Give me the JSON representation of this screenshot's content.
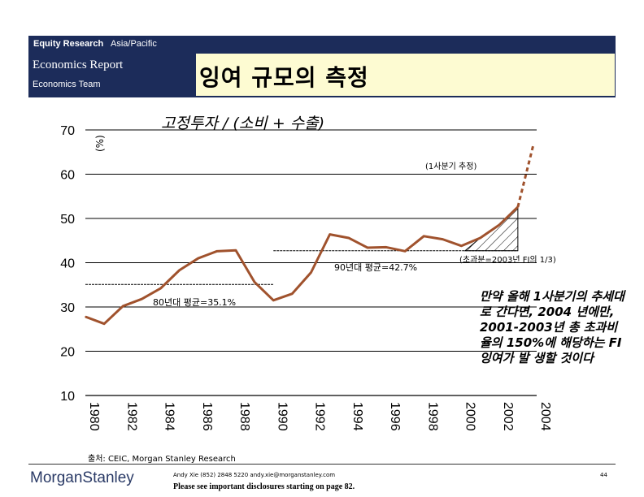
{
  "header": {
    "bar_left": "Equity Research",
    "bar_right": "Asia/Pacific",
    "report_title": "Economics Report",
    "team": "Economics Team",
    "main_title": "잉여 규모의 측정"
  },
  "colors": {
    "navy": "#1c2c5a",
    "title_bg": "#fdfbd2",
    "line": "#a0522d"
  },
  "chart_data": {
    "type": "line",
    "title": "고정투자 / (소비 + 수출)",
    "ylabel": "(%)",
    "xlim": [
      1980,
      2004
    ],
    "ylim": [
      10,
      70
    ],
    "yticks": [
      10,
      20,
      30,
      40,
      50,
      60,
      70
    ],
    "xticks": [
      1980,
      1982,
      1984,
      1986,
      1988,
      1990,
      1992,
      1994,
      1996,
      1998,
      2000,
      2002,
      2004
    ],
    "x": [
      1980,
      1981,
      1982,
      1983,
      1984,
      1985,
      1986,
      1987,
      1988,
      1989,
      1990,
      1991,
      1992,
      1993,
      1994,
      1995,
      1996,
      1997,
      1998,
      1999,
      2000,
      2001,
      2002,
      2003
    ],
    "values": [
      27.8,
      26.2,
      30.2,
      31.8,
      34.2,
      38.3,
      41.0,
      42.6,
      42.8,
      35.6,
      31.5,
      33.0,
      37.8,
      46.4,
      45.6,
      43.4,
      43.5,
      42.6,
      46.0,
      45.3,
      43.8,
      45.6,
      48.5,
      52.6
    ],
    "projection": {
      "x": [
        2003,
        2004
      ],
      "values": [
        52.6,
        66.7
      ]
    },
    "avg_80s": {
      "label": "80년대 평균=35.1%",
      "value": 35.1,
      "range": [
        1980,
        1990
      ]
    },
    "avg_90s": {
      "label": "90년대 평균=42.7%",
      "value": 42.7,
      "range": [
        1990,
        2003
      ]
    },
    "excess_label": "(초과분=2003년 FI의 1/3)",
    "estimate_label": "(1사분기 추정)"
  },
  "note": "만약 올해 1사분기의 추세대로 간다면, 2004 년에만, 2001-2003년 총 초과비율의 150%에 해당하는 FI 잉여가 발 생할 것이다",
  "source": "출처: CEIC, Morgan Stanley Research",
  "footer": {
    "logo": "MorganStanley",
    "author": "Andy Xie (852) 2848 5220 andy.xie@morganstanley.com",
    "disclaimer": "Please see important disclosures starting on page 82.",
    "page": "44"
  }
}
